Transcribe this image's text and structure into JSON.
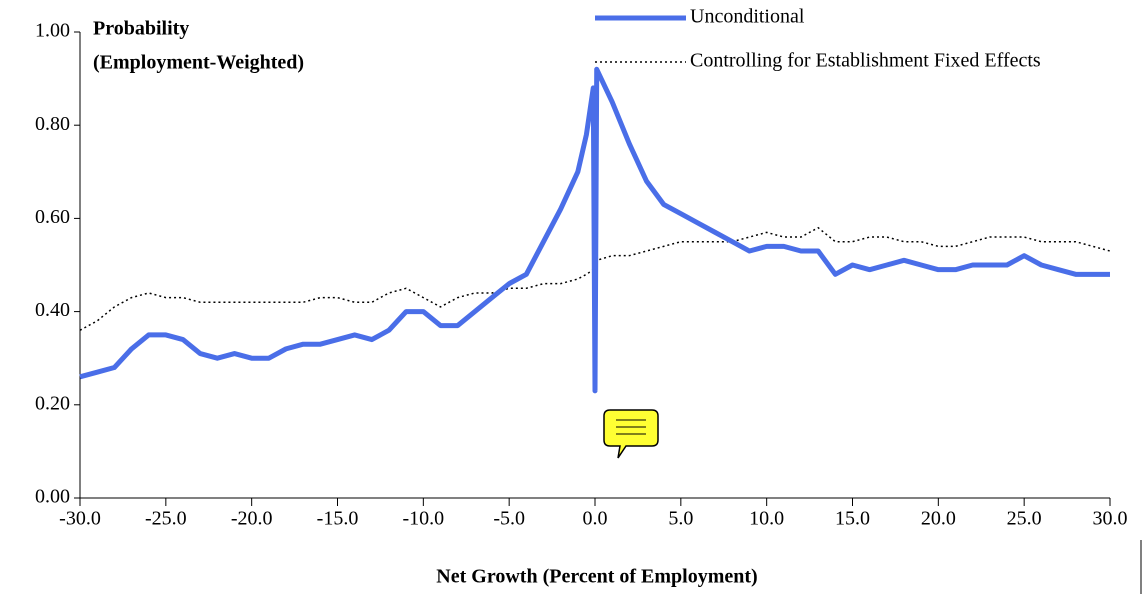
{
  "chart_data": {
    "type": "line",
    "title_lines": [
      "Probability",
      "(Employment-Weighted)"
    ],
    "xlabel": "Net Growth (Percent of Employment)",
    "x": [
      -30,
      -29,
      -28,
      -27,
      -26,
      -25,
      -24,
      -23,
      -22,
      -21,
      -20,
      -19,
      -18,
      -17,
      -16,
      -15,
      -14,
      -13,
      -12,
      -11,
      -10,
      -9,
      -8,
      -7,
      -6,
      -5,
      -4,
      -3,
      -2,
      -1,
      -0.5,
      -0.1,
      0,
      0.1,
      1,
      2,
      3,
      4,
      5,
      6,
      7,
      8,
      9,
      10,
      11,
      12,
      13,
      14,
      15,
      16,
      17,
      18,
      19,
      20,
      21,
      22,
      23,
      24,
      25,
      26,
      27,
      28,
      29,
      30
    ],
    "series": [
      {
        "name": "Unconditional",
        "color": "#4a6ee8",
        "style": "solid",
        "values": [
          0.26,
          0.27,
          0.28,
          0.32,
          0.35,
          0.35,
          0.34,
          0.31,
          0.3,
          0.31,
          0.3,
          0.3,
          0.32,
          0.33,
          0.33,
          0.34,
          0.35,
          0.34,
          0.36,
          0.4,
          0.4,
          0.37,
          0.37,
          0.4,
          0.43,
          0.46,
          0.48,
          0.55,
          0.62,
          0.7,
          0.78,
          0.88,
          0.23,
          0.92,
          0.85,
          0.76,
          0.68,
          0.63,
          0.61,
          0.59,
          0.57,
          0.55,
          0.53,
          0.54,
          0.54,
          0.53,
          0.53,
          0.48,
          0.5,
          0.49,
          0.5,
          0.51,
          0.5,
          0.49,
          0.49,
          0.5,
          0.5,
          0.5,
          0.52,
          0.5,
          0.49,
          0.48,
          0.48,
          0.48
        ]
      },
      {
        "name": "Controlling for Establishment Fixed Effects",
        "color": "#000000",
        "style": "dotted",
        "values": [
          0.36,
          0.38,
          0.41,
          0.43,
          0.44,
          0.43,
          0.43,
          0.42,
          0.42,
          0.42,
          0.42,
          0.42,
          0.42,
          0.42,
          0.43,
          0.43,
          0.42,
          0.42,
          0.44,
          0.45,
          0.43,
          0.41,
          0.43,
          0.44,
          0.44,
          0.45,
          0.45,
          0.46,
          0.46,
          0.47,
          0.48,
          0.49,
          0.44,
          0.51,
          0.52,
          0.52,
          0.53,
          0.54,
          0.55,
          0.55,
          0.55,
          0.55,
          0.56,
          0.57,
          0.56,
          0.56,
          0.58,
          0.55,
          0.55,
          0.56,
          0.56,
          0.55,
          0.55,
          0.54,
          0.54,
          0.55,
          0.56,
          0.56,
          0.56,
          0.55,
          0.55,
          0.55,
          0.54,
          0.53
        ]
      }
    ],
    "xlim": [
      -30,
      30
    ],
    "xticks": [
      {
        "value": -30,
        "label": "-30.0"
      },
      {
        "value": -25,
        "label": "-25.0"
      },
      {
        "value": -20,
        "label": "-20.0"
      },
      {
        "value": -15,
        "label": "-15.0"
      },
      {
        "value": -10,
        "label": "-10.0"
      },
      {
        "value": -5,
        "label": "-5.0"
      },
      {
        "value": 0,
        "label": "0.0"
      },
      {
        "value": 5,
        "label": "5.0"
      },
      {
        "value": 10,
        "label": "10.0"
      },
      {
        "value": 15,
        "label": "15.0"
      },
      {
        "value": 20,
        "label": "20.0"
      },
      {
        "value": 25,
        "label": "25.0"
      },
      {
        "value": 30,
        "label": "30.0"
      }
    ],
    "ylim": [
      0,
      1
    ],
    "yticks": [
      {
        "value": 0,
        "label": "0.00"
      },
      {
        "value": 0.2,
        "label": "0.20"
      },
      {
        "value": 0.4,
        "label": "0.40"
      },
      {
        "value": 0.6,
        "label": "0.60"
      },
      {
        "value": 0.8,
        "label": "0.80"
      },
      {
        "value": 1,
        "label": "1.00"
      }
    ]
  }
}
